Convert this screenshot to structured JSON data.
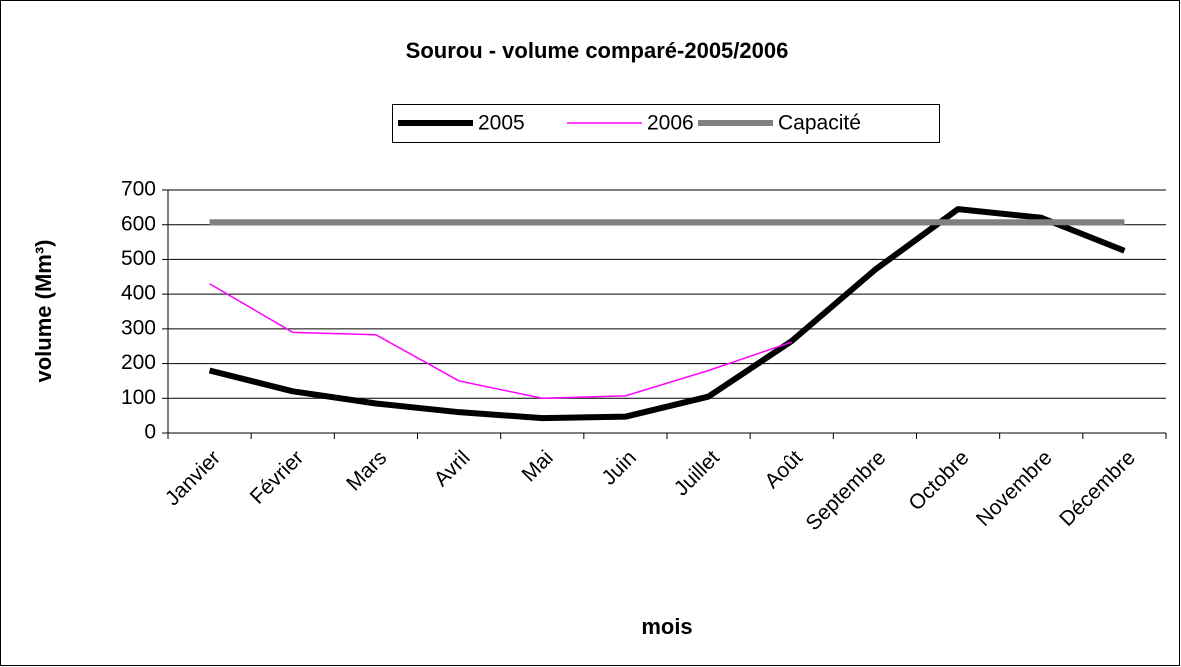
{
  "chart_data": {
    "type": "line",
    "title": "Sourou - volume comparé-2005/2006",
    "x_label": "mois",
    "y_label": "volume (Mm³)",
    "categories": [
      "Janvier",
      "Février",
      "Mars",
      "Avril",
      "Mai",
      "Juin",
      "Juillet",
      "Août",
      "Septembre",
      "Octobre",
      "Novembre",
      "Décembre"
    ],
    "series": [
      {
        "name": "2005",
        "color": "#000000",
        "values": [
          180,
          120,
          85,
          60,
          43,
          47,
          105,
          265,
          470,
          645,
          620,
          525
        ]
      },
      {
        "name": "2006",
        "color": "#ff00ff",
        "values": [
          430,
          290,
          283,
          150,
          100,
          107,
          180,
          262,
          null,
          null,
          null,
          null
        ]
      },
      {
        "name": "Capacité",
        "color": "#808080",
        "values": [
          607,
          607,
          607,
          607,
          607,
          607,
          607,
          607,
          607,
          607,
          607,
          607
        ]
      }
    ],
    "ylim": [
      0,
      700
    ],
    "yticks": [
      0,
      100,
      200,
      300,
      400,
      500,
      600,
      700
    ],
    "grid": true,
    "legend": "top"
  }
}
